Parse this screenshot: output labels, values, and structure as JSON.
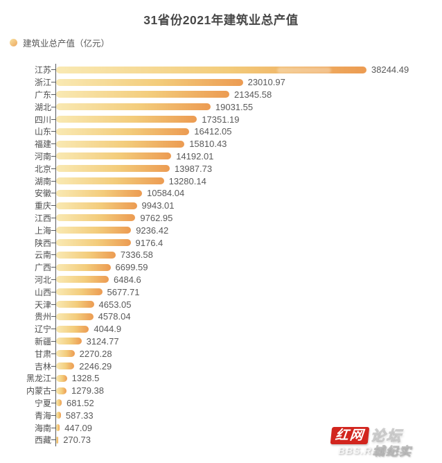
{
  "title": "31省份2021年建筑业总产值",
  "legend": {
    "label": "建筑业总产值（亿元）"
  },
  "chart_data": {
    "type": "bar",
    "orientation": "horizontal",
    "title": "31省份2021年建筑业总产值",
    "legend": [
      "建筑业总产值（亿元）"
    ],
    "xlabel": "",
    "ylabel": "",
    "unit": "亿元",
    "xlim": [
      0,
      38244.49
    ],
    "grid": false,
    "legend_position": "top-left",
    "value_label_position": "right-of-bar",
    "bar_gradient": [
      "#F9E9B3",
      "#F3CC7B",
      "#EC9B52"
    ],
    "categories": [
      "江苏",
      "浙江",
      "广东",
      "湖北",
      "四川",
      "山东",
      "福建",
      "河南",
      "北京",
      "湖南",
      "安徽",
      "重庆",
      "江西",
      "上海",
      "陕西",
      "云南",
      "广西",
      "河北",
      "山西",
      "天津",
      "贵州",
      "辽宁",
      "新疆",
      "甘肃",
      "吉林",
      "黑龙江",
      "内蒙古",
      "宁夏",
      "青海",
      "海南",
      "西藏"
    ],
    "values": [
      38244.49,
      23010.97,
      21345.58,
      19031.55,
      17351.19,
      16412.05,
      15810.43,
      14192.01,
      13987.73,
      13280.14,
      10584.04,
      9943.01,
      9762.95,
      9236.42,
      9176.4,
      7336.58,
      6699.59,
      6484.6,
      5677.71,
      4653.05,
      4578.04,
      4044.9,
      3124.77,
      2270.28,
      2246.29,
      1328.5,
      1279.38,
      681.52,
      587.33,
      447.09,
      270.73
    ],
    "value_labels": [
      "38244.49",
      "23010.97",
      "21345.58",
      "19031.55",
      "17351.19",
      "16412.05",
      "15810.43",
      "14192.01",
      "13987.73",
      "13280.14",
      "10584.04",
      "9943.01",
      "9762.95",
      "9236.42",
      "9176.4",
      "7336.58",
      "6699.59",
      "6484.6",
      "5677.71",
      "4653.05",
      "4578.04",
      "4044.9",
      "3124.77",
      "2270.28",
      "2246.29",
      "1328.5",
      "1279.38",
      "681.52",
      "587.33",
      "447.09",
      "270.73"
    ]
  },
  "watermark": {
    "brand": "红网",
    "suffix": "论坛",
    "subtext": "BBS.REDNET",
    "overlap": "城纪实",
    "brand_color": "#D2251E"
  },
  "colors": {
    "title": "#474747",
    "category_label": "#4D4D4D",
    "value_label": "#595959",
    "axis": "#55585C",
    "background": "#FFFFFF"
  }
}
